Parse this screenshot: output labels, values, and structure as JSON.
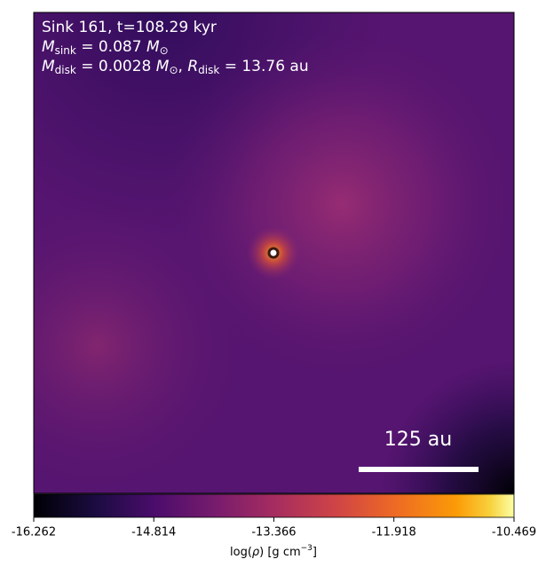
{
  "chart_data": {
    "type": "image",
    "annotation": {
      "line1": "Sink 161, t=108.29 kyr",
      "line2": [
        "M",
        "sink",
        " = 0.087 ",
        "M",
        "⊙"
      ],
      "line3": [
        "M",
        "disk",
        " = 0.0028 ",
        "M",
        "⊙",
        ", ",
        "R",
        "disk",
        " = 13.76 au"
      ]
    },
    "scale_bar": "125 au",
    "colorbar": {
      "label": [
        "log(",
        "ρ",
        ") [g cm",
        "−3",
        "]"
      ],
      "lim": [
        -16.262,
        -10.469
      ],
      "ticks": [
        -16.262,
        -14.814,
        -13.366,
        -11.918,
        -10.469
      ]
    }
  }
}
